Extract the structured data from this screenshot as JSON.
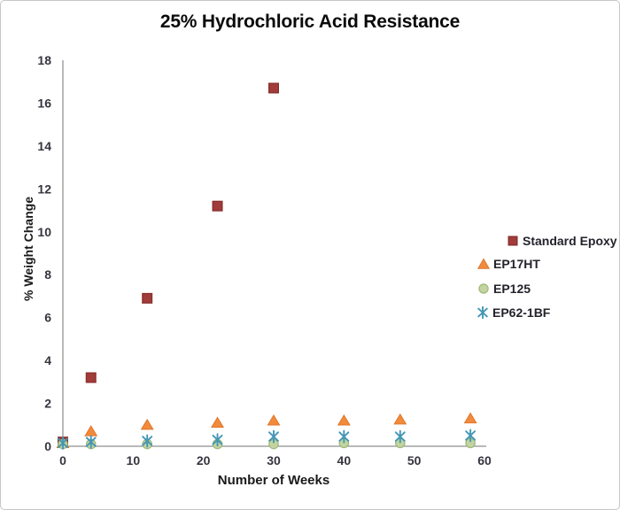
{
  "chart_data": {
    "type": "scatter",
    "title": "25% Hydrochloric Acid Resistance",
    "xlabel": "Number of Weeks",
    "ylabel": "% Weight Change",
    "xlim": [
      0,
      60
    ],
    "ylim": [
      0,
      18
    ],
    "xticks": [
      0,
      10,
      20,
      30,
      40,
      50,
      60
    ],
    "yticks": [
      0,
      2,
      4,
      6,
      8,
      10,
      12,
      14,
      16,
      18
    ],
    "grid": false,
    "legend_position": "right",
    "axis_color": "#a2a2a2",
    "tick_color": "#35353f",
    "x": [
      0,
      4,
      12,
      22,
      30,
      40,
      48,
      58
    ],
    "series": [
      {
        "name": "Standard Epoxy",
        "marker": "square",
        "color": "#A23C3A",
        "edge": "#8A302E",
        "values": [
          0.2,
          3.2,
          6.9,
          11.2,
          16.7,
          null,
          null,
          null
        ]
      },
      {
        "name": "EP17HT",
        "marker": "triangle",
        "color": "#F28A3C",
        "edge": "#E0762B",
        "values": [
          0.15,
          0.7,
          1.0,
          1.1,
          1.2,
          1.2,
          1.25,
          1.3
        ]
      },
      {
        "name": "EP125",
        "marker": "circle",
        "color": "#C4D4A0",
        "edge": "#9DB87A",
        "values": [
          0.1,
          0.1,
          0.1,
          0.1,
          0.1,
          0.15,
          0.15,
          0.15
        ]
      },
      {
        "name": "EP62-1BF",
        "marker": "asterisk",
        "color": "#4396B6",
        "edge": "#31849B",
        "values": [
          0.15,
          0.2,
          0.25,
          0.3,
          0.45,
          0.45,
          0.45,
          0.5
        ]
      }
    ]
  }
}
